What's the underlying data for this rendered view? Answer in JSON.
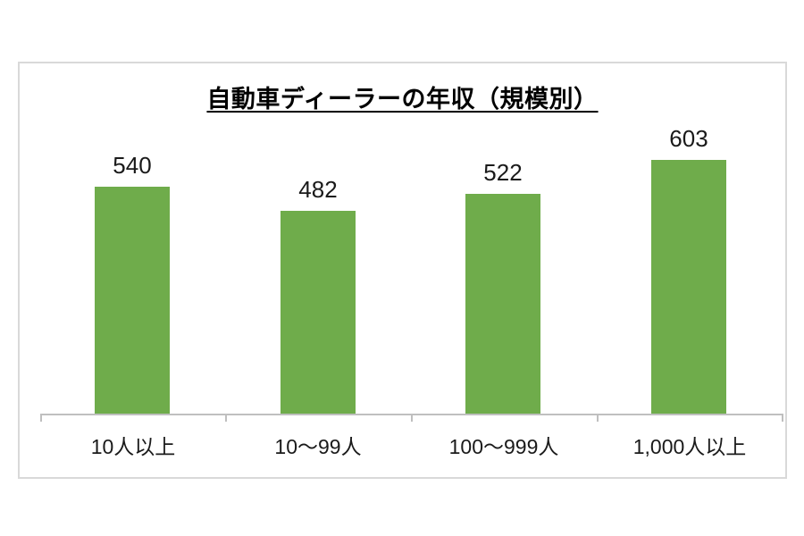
{
  "chart_data": {
    "type": "bar",
    "title": "自動車ディーラーの年収（規模別）",
    "title_underlined": true,
    "categories": [
      "10人以上",
      "10～99人",
      "100～999人",
      "1,000人以上"
    ],
    "values": [
      540,
      482,
      522,
      603
    ],
    "series": [
      {
        "name": "年収",
        "values": [
          540,
          482,
          522,
          603
        ]
      }
    ],
    "data_labels": [
      540,
      482,
      522,
      603
    ],
    "data_label_position": "outside-end",
    "xlabel": "",
    "ylabel": "",
    "ylim": [
      0,
      700
    ],
    "value_axis_visible": false,
    "grid": false,
    "legend_position": "none",
    "colors": {
      "bar_fill": "#6fac4b",
      "axis_line": "#bfbfbf",
      "frame_border": "#d9d9d9",
      "text": "#1a1a1a",
      "title_text": "#000000",
      "background": "#ffffff"
    }
  }
}
